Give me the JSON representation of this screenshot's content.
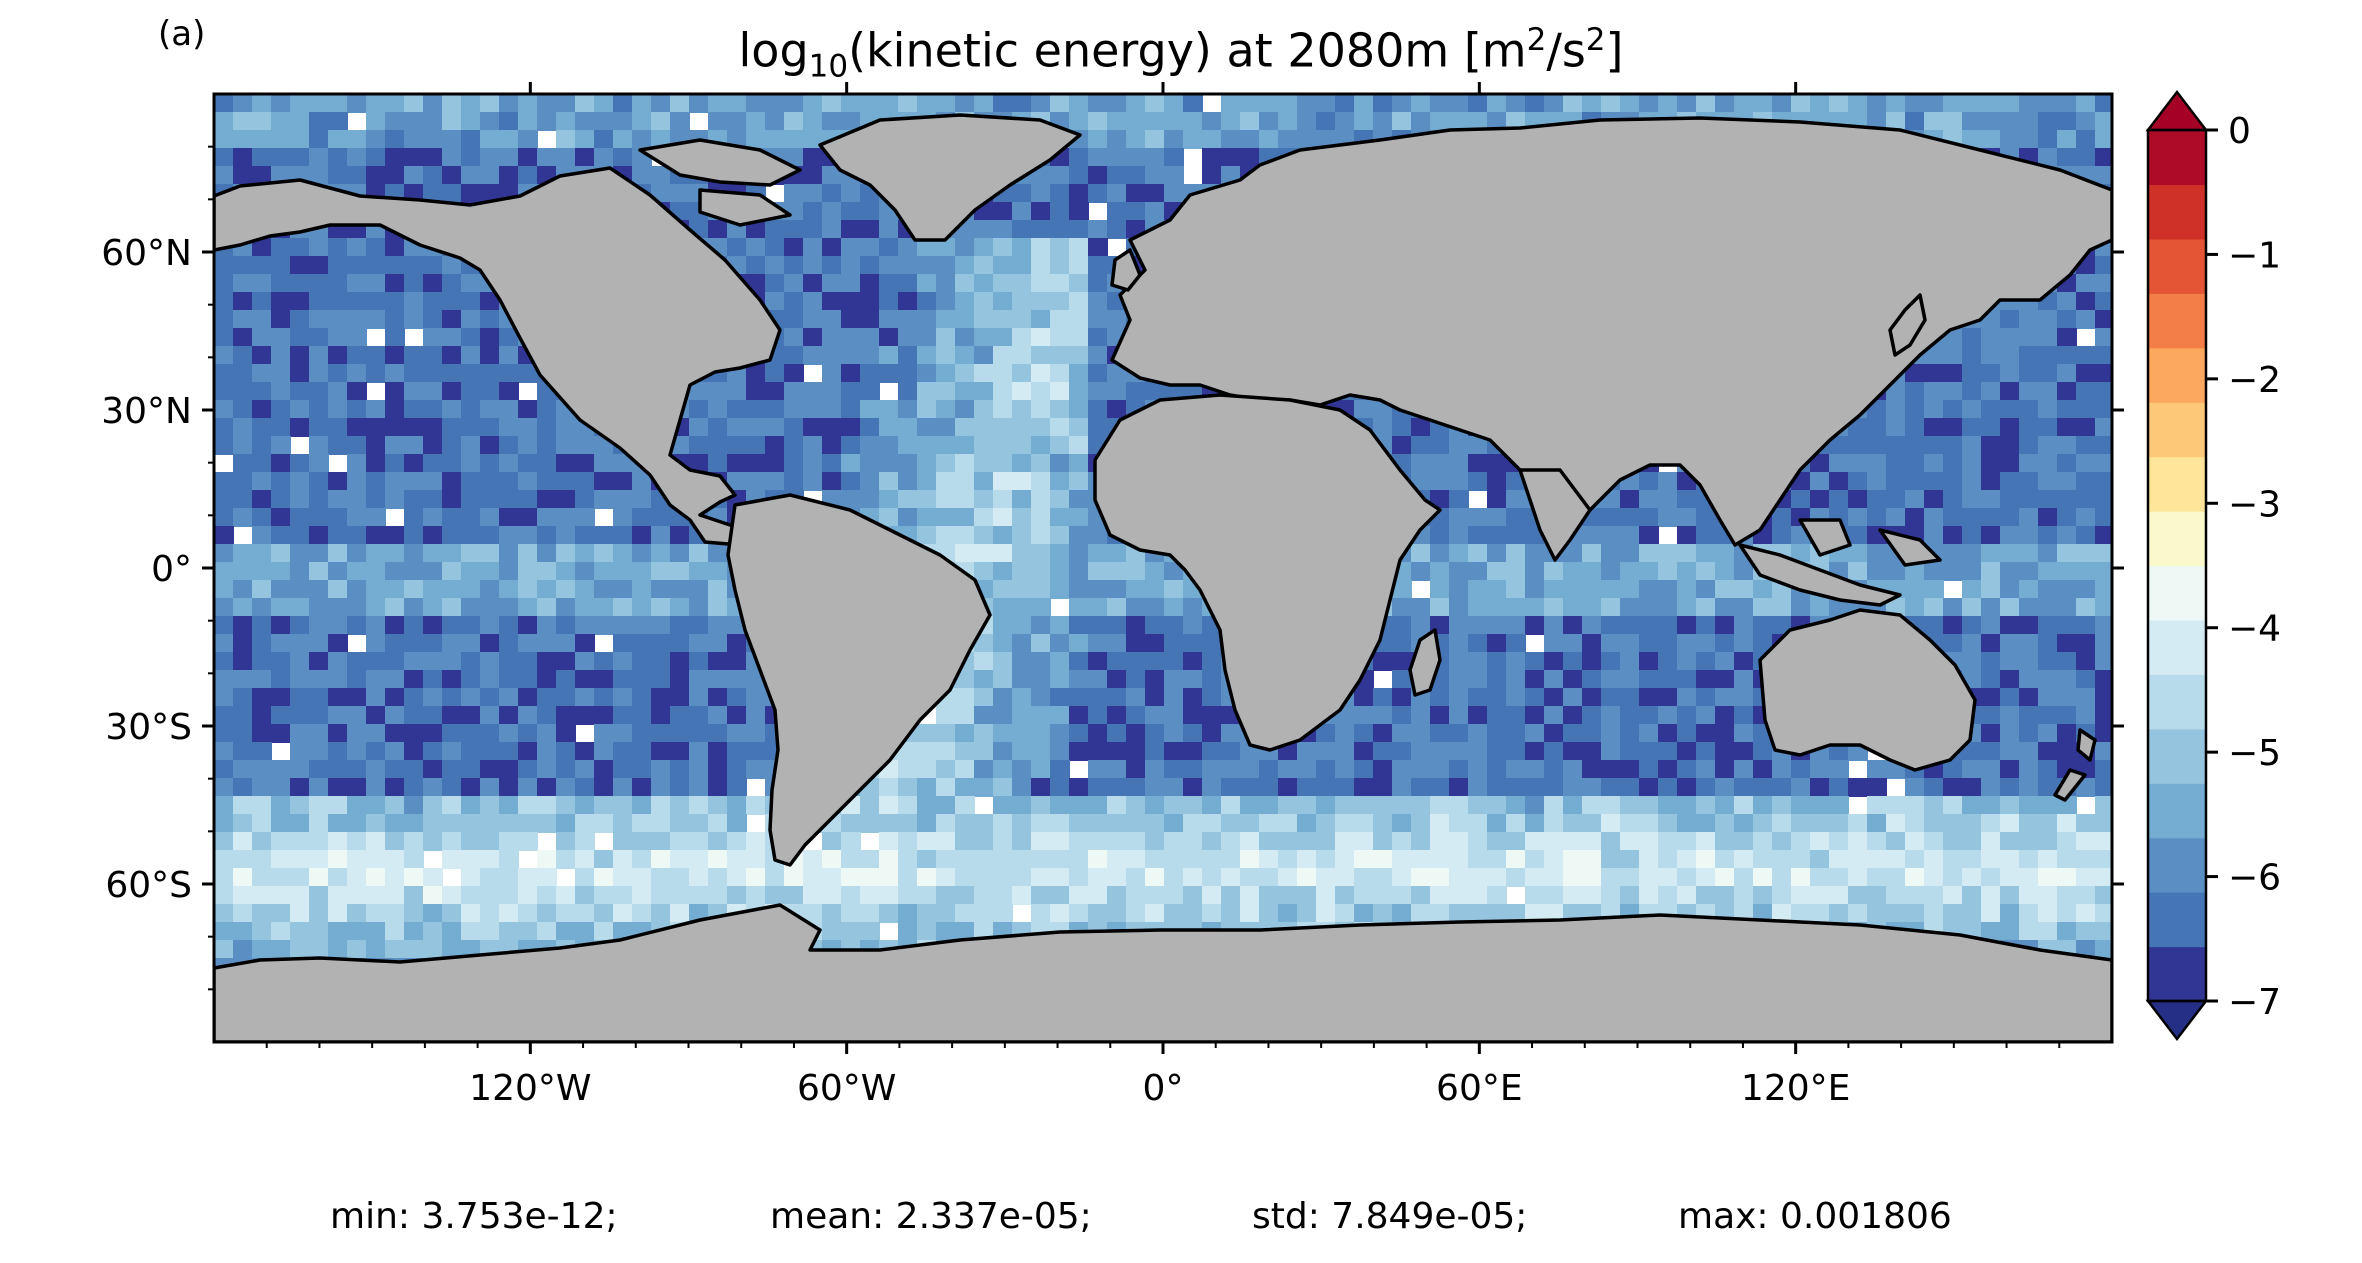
{
  "panel_label": "(a)",
  "title": {
    "prefix": "log",
    "sub": "10",
    "middle": "(kinetic energy) at 2080m [m",
    "sup1": "2",
    "slash": "/s",
    "sup2": "2",
    "suffix": "]"
  },
  "stats": {
    "min": "min: 3.753e-12;",
    "mean": "mean: 2.337e-05;",
    "std": "std: 7.849e-05;",
    "max": "max: 0.001806"
  },
  "colors": {
    "land": "#b2b2b2",
    "coast": "#000000",
    "ocean_missing": "#ffffff"
  },
  "map_data": {
    "projection": "plate carree",
    "lon_range": [
      -180,
      180
    ],
    "lat_range": [
      -90,
      90
    ],
    "yticks": [
      {
        "value": 60,
        "label": "60°N"
      },
      {
        "value": 30,
        "label": "30°N"
      },
      {
        "value": 0,
        "label": "0°"
      },
      {
        "value": -30,
        "label": "30°S"
      },
      {
        "value": -60,
        "label": "60°S"
      }
    ],
    "xticks": [
      {
        "value": -120,
        "label": "120°W"
      },
      {
        "value": -60,
        "label": "60°W"
      },
      {
        "value": 0,
        "label": "0°"
      },
      {
        "value": 60,
        "label": "60°E"
      },
      {
        "value": 120,
        "label": "120°E"
      }
    ],
    "colorbar": {
      "min": -7,
      "max": 0,
      "extend": "both",
      "colors": [
        "#313695",
        "#4575b4",
        "#5b8ec2",
        "#74add1",
        "#95c4df",
        "#b8dbeb",
        "#d5ebf3",
        "#eef8f4",
        "#f9f9cc",
        "#fee59a",
        "#fdc978",
        "#fca85e",
        "#f47e48",
        "#e45535",
        "#cf3128",
        "#ad0b27"
      ],
      "extend_low_color": "#262f86",
      "extend_high_color": "#a50026",
      "ticks": [
        {
          "value": 0,
          "label": "0"
        },
        {
          "value": -1,
          "label": "−1"
        },
        {
          "value": -2,
          "label": "−2"
        },
        {
          "value": -3,
          "label": "−3"
        },
        {
          "value": -4,
          "label": "−4"
        },
        {
          "value": -5,
          "label": "−5"
        },
        {
          "value": -6,
          "label": "−6"
        },
        {
          "value": -7,
          "label": "−7"
        }
      ]
    }
  }
}
